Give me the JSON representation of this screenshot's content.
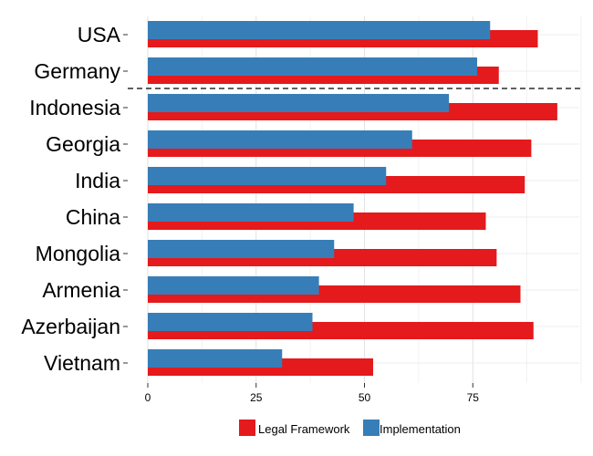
{
  "chart_data": {
    "type": "bar",
    "orientation": "horizontal",
    "categories": [
      "USA",
      "Germany",
      "Indonesia",
      "Georgia",
      "India",
      "China",
      "Mongolia",
      "Armenia",
      "Azerbaijan",
      "Vietnam"
    ],
    "series": [
      {
        "name": "Legal Framework",
        "color": "#e41a1c",
        "values": [
          90,
          81,
          94.5,
          88.5,
          87,
          78,
          80.5,
          86,
          89,
          52
        ]
      },
      {
        "name": "Implementation",
        "color": "#377eb8",
        "values": [
          79,
          76,
          69.5,
          61,
          55,
          47.5,
          43,
          39.5,
          38,
          31
        ]
      }
    ],
    "xticks": [
      0,
      25,
      50,
      75
    ],
    "xlim": [
      0,
      100
    ],
    "separator_after": "Germany",
    "grid": true,
    "legend_position": "bottom"
  }
}
